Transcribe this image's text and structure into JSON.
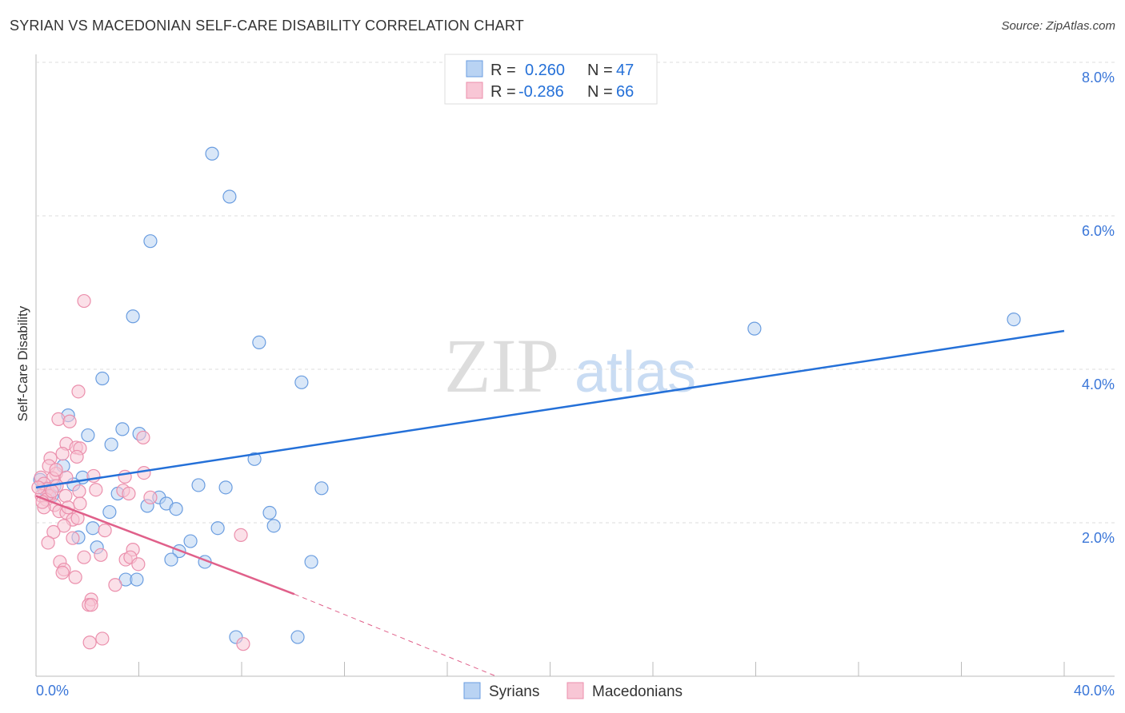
{
  "title": "SYRIAN VS MACEDONIAN SELF-CARE DISABILITY CORRELATION CHART",
  "source": "Source: ZipAtlas.com",
  "watermark": "ZIPatlas",
  "chart_data": {
    "type": "scatter",
    "title": "SYRIAN VS MACEDONIAN SELF-CARE DISABILITY CORRELATION CHART",
    "xlabel": "",
    "ylabel": "Self-Care Disability",
    "xlim": [
      0,
      40
    ],
    "ylim": [
      0,
      8
    ],
    "x_tick_labels": [
      "0.0%",
      "40.0%"
    ],
    "y_tick_labels": [
      "2.0%",
      "4.0%",
      "6.0%",
      "8.0%"
    ],
    "y_ticks": [
      2,
      4,
      6,
      8
    ],
    "grid": true,
    "legend_position": "top-center",
    "stats": [
      {
        "r_label": "R =",
        "r": "0.260",
        "n_label": "N =",
        "n": "47"
      },
      {
        "r_label": "R =",
        "r": "-0.286",
        "n_label": "N =",
        "n": "66"
      }
    ],
    "series": [
      {
        "name": "Syrians",
        "color": "#6a9de0",
        "fill": "#b9d3f3",
        "line_color": "#2470d8",
        "trend": {
          "x": [
            0,
            40
          ],
          "y": [
            2.46,
            4.5
          ]
        },
        "points": [
          [
            6.85,
            6.81
          ],
          [
            7.53,
            6.25
          ],
          [
            4.45,
            5.67
          ],
          [
            3.77,
            4.69
          ],
          [
            8.68,
            4.35
          ],
          [
            27.95,
            4.53
          ],
          [
            38.04,
            4.65
          ],
          [
            2.58,
            3.88
          ],
          [
            10.33,
            3.83
          ],
          [
            1.25,
            3.4
          ],
          [
            3.36,
            3.22
          ],
          [
            4.02,
            3.16
          ],
          [
            2.02,
            3.14
          ],
          [
            2.93,
            3.02
          ],
          [
            8.5,
            2.83
          ],
          [
            1.06,
            2.74
          ],
          [
            1.81,
            2.59
          ],
          [
            0.16,
            2.56
          ],
          [
            1.46,
            2.5
          ],
          [
            6.32,
            2.49
          ],
          [
            7.38,
            2.46
          ],
          [
            11.11,
            2.45
          ],
          [
            0.72,
            2.48
          ],
          [
            3.18,
            2.38
          ],
          [
            4.79,
            2.33
          ],
          [
            0.47,
            2.39
          ],
          [
            4.33,
            2.22
          ],
          [
            5.07,
            2.25
          ],
          [
            5.45,
            2.18
          ],
          [
            2.86,
            2.14
          ],
          [
            9.09,
            2.13
          ],
          [
            2.21,
            1.93
          ],
          [
            7.07,
            1.93
          ],
          [
            9.25,
            1.96
          ],
          [
            1.65,
            1.81
          ],
          [
            6.01,
            1.76
          ],
          [
            2.37,
            1.68
          ],
          [
            5.57,
            1.63
          ],
          [
            5.26,
            1.52
          ],
          [
            6.57,
            1.49
          ],
          [
            10.71,
            1.49
          ],
          [
            3.49,
            1.26
          ],
          [
            3.92,
            1.26
          ],
          [
            7.78,
            0.51
          ],
          [
            10.18,
            0.51
          ],
          [
            0.31,
            2.44
          ],
          [
            0.62,
            2.35
          ]
        ]
      },
      {
        "name": "Macedonians",
        "color": "#eb8fac",
        "fill": "#f8c6d5",
        "line_color": "#e0608a",
        "trend": {
          "x": [
            0,
            10.05
          ],
          "y": [
            2.35,
            1.07
          ],
          "dashed_to": [
            17.9,
            0
          ]
        },
        "points": [
          [
            1.87,
            4.89
          ],
          [
            1.65,
            3.71
          ],
          [
            0.87,
            3.35
          ],
          [
            1.31,
            3.32
          ],
          [
            1.18,
            3.03
          ],
          [
            1.56,
            2.98
          ],
          [
            1.71,
            2.97
          ],
          [
            0.56,
            2.84
          ],
          [
            1.03,
            2.9
          ],
          [
            1.59,
            2.86
          ],
          [
            0.5,
            2.74
          ],
          [
            0.78,
            2.64
          ],
          [
            0.65,
            2.58
          ],
          [
            1.18,
            2.59
          ],
          [
            2.24,
            2.61
          ],
          [
            4.2,
            2.65
          ],
          [
            3.46,
            2.6
          ],
          [
            0.19,
            2.59
          ],
          [
            0.31,
            2.51
          ],
          [
            0.44,
            2.44
          ],
          [
            0.53,
            2.35
          ],
          [
            0.81,
            2.48
          ],
          [
            0.22,
            2.35
          ],
          [
            0.4,
            2.3
          ],
          [
            0.72,
            2.23
          ],
          [
            0.9,
            2.15
          ],
          [
            3.39,
            2.42
          ],
          [
            3.61,
            2.38
          ],
          [
            1.68,
            2.41
          ],
          [
            4.45,
            2.33
          ],
          [
            0.31,
            2.2
          ],
          [
            1.18,
            2.13
          ],
          [
            1.43,
            2.04
          ],
          [
            1.62,
            2.06
          ],
          [
            1.09,
            1.96
          ],
          [
            2.68,
            1.9
          ],
          [
            0.68,
            1.88
          ],
          [
            1.43,
            1.8
          ],
          [
            0.47,
            1.74
          ],
          [
            7.97,
            1.84
          ],
          [
            1.87,
            1.55
          ],
          [
            2.52,
            1.58
          ],
          [
            3.49,
            1.52
          ],
          [
            3.77,
            1.65
          ],
          [
            3.67,
            1.55
          ],
          [
            3.98,
            1.46
          ],
          [
            0.93,
            1.49
          ],
          [
            1.09,
            1.39
          ],
          [
            1.03,
            1.35
          ],
          [
            1.53,
            1.29
          ],
          [
            3.08,
            1.19
          ],
          [
            2.15,
            1.0
          ],
          [
            2.05,
            0.93
          ],
          [
            2.15,
            0.93
          ],
          [
            2.58,
            0.49
          ],
          [
            2.09,
            0.44
          ],
          [
            8.06,
            0.42
          ],
          [
            4.17,
            3.11
          ],
          [
            1.15,
            2.35
          ],
          [
            0.09,
            2.46
          ],
          [
            0.25,
            2.27
          ],
          [
            0.62,
            2.41
          ],
          [
            2.33,
            2.43
          ],
          [
            1.25,
            2.2
          ],
          [
            1.71,
            2.25
          ],
          [
            0.78,
            2.69
          ]
        ]
      }
    ]
  }
}
